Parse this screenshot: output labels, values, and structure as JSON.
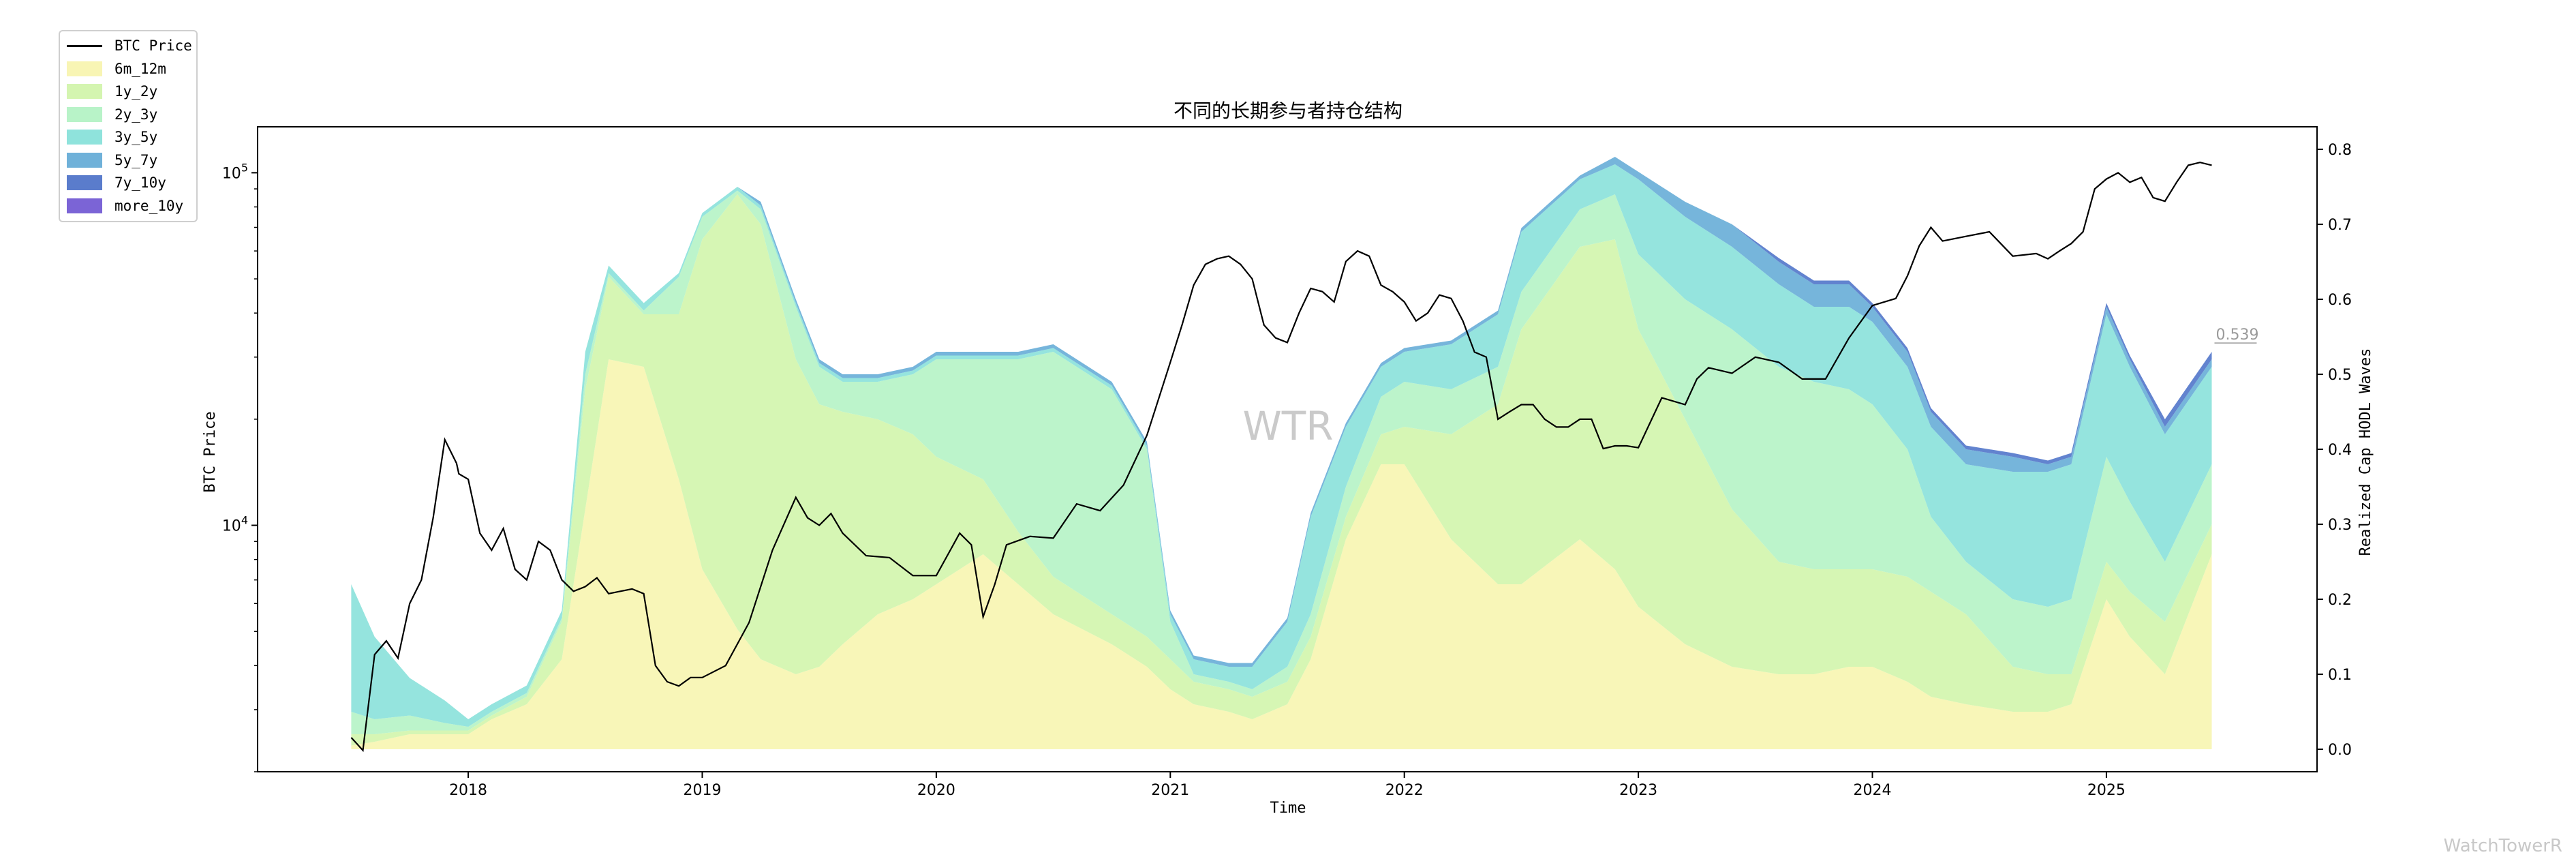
{
  "chart_data": {
    "type": "area",
    "title": "不同的长期参与者持仓结构",
    "xlabel": "Time",
    "ylabel_left": "BTC Price",
    "ylabel_right": "Realized Cap HODL Waves",
    "x_ticks": [
      "2018",
      "2019",
      "2020",
      "2021",
      "2022",
      "2023",
      "2024",
      "2025"
    ],
    "y_left_scale": "log",
    "y_left_ticks": [
      "10^4",
      "10^5"
    ],
    "y_left_range": [
      2000,
      135000
    ],
    "y_right_range": [
      -0.03,
      0.83
    ],
    "y_right_ticks": [
      "0.0",
      "0.1",
      "0.2",
      "0.3",
      "0.4",
      "0.5",
      "0.6",
      "0.7",
      "0.8"
    ],
    "x_range": [
      2017.1,
      2025.9
    ],
    "grid": false,
    "legend_position": "upper-left outside",
    "watermark": "WTR",
    "annotation": {
      "label": "0.539",
      "x": 2025.45,
      "y": 0.539
    },
    "x": [
      2017.5,
      2017.6,
      2017.75,
      2017.9,
      2018.0,
      2018.1,
      2018.25,
      2018.4,
      2018.5,
      2018.6,
      2018.75,
      2018.9,
      2019.0,
      2019.15,
      2019.25,
      2019.4,
      2019.5,
      2019.6,
      2019.75,
      2019.9,
      2020.0,
      2020.2,
      2020.35,
      2020.5,
      2020.75,
      2020.9,
      2021.0,
      2021.1,
      2021.25,
      2021.35,
      2021.5,
      2021.6,
      2021.75,
      2021.9,
      2022.0,
      2022.2,
      2022.4,
      2022.5,
      2022.75,
      2022.9,
      2023.0,
      2023.2,
      2023.4,
      2023.6,
      2023.75,
      2023.9,
      2024.0,
      2024.15,
      2024.25,
      2024.4,
      2024.6,
      2024.75,
      2024.85,
      2025.0,
      2025.1,
      2025.25,
      2025.45
    ],
    "series": [
      {
        "name": "6m_12m",
        "color": "#f8f5b4",
        "values": [
          0.005,
          0.01,
          0.02,
          0.02,
          0.02,
          0.04,
          0.06,
          0.12,
          0.32,
          0.52,
          0.51,
          0.36,
          0.24,
          0.16,
          0.12,
          0.1,
          0.11,
          0.14,
          0.18,
          0.2,
          0.22,
          0.26,
          0.22,
          0.18,
          0.14,
          0.11,
          0.08,
          0.06,
          0.05,
          0.04,
          0.06,
          0.12,
          0.28,
          0.38,
          0.38,
          0.28,
          0.22,
          0.22,
          0.28,
          0.24,
          0.19,
          0.14,
          0.11,
          0.1,
          0.1,
          0.11,
          0.11,
          0.09,
          0.07,
          0.06,
          0.05,
          0.05,
          0.06,
          0.2,
          0.15,
          0.1,
          0.26
        ]
      },
      {
        "name": "1y_2y",
        "color": "#d4f5b0",
        "values": [
          0.015,
          0.01,
          0.005,
          0.005,
          0.005,
          0.005,
          0.01,
          0.05,
          0.16,
          0.11,
          0.07,
          0.22,
          0.44,
          0.58,
          0.58,
          0.42,
          0.35,
          0.31,
          0.26,
          0.22,
          0.17,
          0.1,
          0.07,
          0.05,
          0.04,
          0.04,
          0.04,
          0.03,
          0.03,
          0.03,
          0.03,
          0.03,
          0.03,
          0.04,
          0.05,
          0.14,
          0.24,
          0.34,
          0.39,
          0.44,
          0.37,
          0.3,
          0.21,
          0.15,
          0.14,
          0.13,
          0.13,
          0.14,
          0.14,
          0.12,
          0.06,
          0.05,
          0.04,
          0.05,
          0.06,
          0.07,
          0.04
        ]
      },
      {
        "name": "2y_3y",
        "color": "#b8f3c8",
        "values": [
          0.03,
          0.02,
          0.02,
          0.01,
          0.005,
          0.005,
          0.005,
          0.005,
          0.02,
          0.005,
          0.005,
          0.05,
          0.03,
          0.005,
          0.02,
          0.07,
          0.05,
          0.04,
          0.05,
          0.08,
          0.13,
          0.16,
          0.23,
          0.3,
          0.3,
          0.25,
          0.05,
          0.01,
          0.01,
          0.01,
          0.02,
          0.03,
          0.04,
          0.05,
          0.06,
          0.06,
          0.05,
          0.05,
          0.05,
          0.06,
          0.1,
          0.16,
          0.24,
          0.26,
          0.25,
          0.24,
          0.22,
          0.17,
          0.1,
          0.07,
          0.09,
          0.09,
          0.1,
          0.14,
          0.12,
          0.08,
          0.08
        ]
      },
      {
        "name": "3y_5y",
        "color": "#8fe3dc",
        "values": [
          0.17,
          0.11,
          0.05,
          0.03,
          0.01,
          0.01,
          0.01,
          0.01,
          0.03,
          0.01,
          0.01,
          0.005,
          0.005,
          0.005,
          0.005,
          0.005,
          0.005,
          0.005,
          0.005,
          0.005,
          0.005,
          0.005,
          0.005,
          0.005,
          0.005,
          0.005,
          0.01,
          0.02,
          0.02,
          0.03,
          0.06,
          0.13,
          0.08,
          0.04,
          0.04,
          0.06,
          0.07,
          0.08,
          0.04,
          0.04,
          0.1,
          0.11,
          0.11,
          0.11,
          0.1,
          0.11,
          0.11,
          0.11,
          0.12,
          0.13,
          0.17,
          0.18,
          0.18,
          0.19,
          0.18,
          0.17,
          0.13
        ]
      },
      {
        "name": "5y_7y",
        "color": "#6fb1d9",
        "values": [
          0.0,
          0.0,
          0.0,
          0.0,
          0.0,
          0.0,
          0.0,
          0.0,
          0.0,
          0.0,
          0.0,
          0.0,
          0.0,
          0.0,
          0.005,
          0.005,
          0.005,
          0.005,
          0.005,
          0.005,
          0.005,
          0.005,
          0.005,
          0.005,
          0.005,
          0.005,
          0.005,
          0.005,
          0.005,
          0.005,
          0.005,
          0.005,
          0.005,
          0.005,
          0.005,
          0.005,
          0.005,
          0.005,
          0.005,
          0.01,
          0.01,
          0.02,
          0.03,
          0.03,
          0.03,
          0.03,
          0.02,
          0.02,
          0.02,
          0.02,
          0.02,
          0.01,
          0.01,
          0.01,
          0.01,
          0.01,
          0.01
        ]
      },
      {
        "name": "7y_10y",
        "color": "#5a7ccc",
        "values": [
          0.0,
          0.0,
          0.0,
          0.0,
          0.0,
          0.0,
          0.0,
          0.0,
          0.0,
          0.0,
          0.0,
          0.0,
          0.0,
          0.0,
          0.0,
          0.0,
          0.0,
          0.0,
          0.0,
          0.0,
          0.0,
          0.0,
          0.0,
          0.0,
          0.0,
          0.0,
          0.0,
          0.0,
          0.0,
          0.0,
          0.0,
          0.0,
          0.0,
          0.0,
          0.0,
          0.0,
          0.0,
          0.0,
          0.0,
          0.0,
          0.0,
          0.0,
          0.0,
          0.005,
          0.005,
          0.005,
          0.005,
          0.005,
          0.005,
          0.005,
          0.005,
          0.005,
          0.005,
          0.005,
          0.005,
          0.01,
          0.01
        ]
      },
      {
        "name": "more_10y",
        "color": "#7b64d6",
        "values": [
          0.0,
          0.0,
          0.0,
          0.0,
          0.0,
          0.0,
          0.0,
          0.0,
          0.0,
          0.0,
          0.0,
          0.0,
          0.0,
          0.0,
          0.0,
          0.0,
          0.0,
          0.0,
          0.0,
          0.0,
          0.0,
          0.0,
          0.0,
          0.0,
          0.0,
          0.0,
          0.0,
          0.0,
          0.0,
          0.0,
          0.0,
          0.0,
          0.0,
          0.0,
          0.0,
          0.0,
          0.0,
          0.0,
          0.0,
          0.0,
          0.0,
          0.0,
          0.0,
          0.0,
          0.0,
          0.0,
          0.0,
          0.0,
          0.0,
          0.0,
          0.0,
          0.0,
          0.0,
          0.0,
          0.0,
          0.0,
          0.0
        ]
      }
    ],
    "price_series": {
      "name": "BTC Price",
      "color": "#000000",
      "x": [
        2017.5,
        2017.55,
        2017.6,
        2017.65,
        2017.7,
        2017.75,
        2017.8,
        2017.85,
        2017.9,
        2017.95,
        2017.96,
        2018.0,
        2018.05,
        2018.1,
        2018.15,
        2018.2,
        2018.25,
        2018.3,
        2018.35,
        2018.4,
        2018.45,
        2018.5,
        2018.55,
        2018.6,
        2018.65,
        2018.7,
        2018.75,
        2018.8,
        2018.85,
        2018.9,
        2018.95,
        2019.0,
        2019.1,
        2019.2,
        2019.3,
        2019.4,
        2019.45,
        2019.5,
        2019.55,
        2019.6,
        2019.7,
        2019.8,
        2019.9,
        2020.0,
        2020.1,
        2020.15,
        2020.2,
        2020.25,
        2020.3,
        2020.4,
        2020.5,
        2020.6,
        2020.7,
        2020.8,
        2020.9,
        2021.0,
        2021.05,
        2021.1,
        2021.15,
        2021.2,
        2021.25,
        2021.3,
        2021.35,
        2021.4,
        2021.45,
        2021.5,
        2021.55,
        2021.6,
        2021.65,
        2021.7,
        2021.75,
        2021.8,
        2021.85,
        2021.9,
        2021.95,
        2022.0,
        2022.05,
        2022.1,
        2022.15,
        2022.2,
        2022.25,
        2022.3,
        2022.35,
        2022.4,
        2022.45,
        2022.5,
        2022.55,
        2022.6,
        2022.65,
        2022.7,
        2022.75,
        2022.8,
        2022.85,
        2022.9,
        2022.95,
        2023.0,
        2023.1,
        2023.2,
        2023.25,
        2023.3,
        2023.4,
        2023.5,
        2023.6,
        2023.7,
        2023.8,
        2023.9,
        2024.0,
        2024.1,
        2024.15,
        2024.2,
        2024.25,
        2024.3,
        2024.4,
        2024.5,
        2024.6,
        2024.7,
        2024.75,
        2024.8,
        2024.85,
        2024.9,
        2024.95,
        2025.0,
        2025.05,
        2025.1,
        2025.15,
        2025.2,
        2025.25,
        2025.3,
        2025.35,
        2025.4,
        2025.45
      ],
      "values": [
        2500,
        2300,
        4300,
        4700,
        4200,
        6000,
        7000,
        10500,
        17500,
        15000,
        14000,
        13500,
        9500,
        8500,
        9800,
        7500,
        7000,
        9000,
        8500,
        7000,
        6500,
        6700,
        7100,
        6400,
        6500,
        6600,
        6400,
        4000,
        3600,
        3500,
        3700,
        3700,
        4000,
        5300,
        8500,
        12000,
        10500,
        10000,
        10800,
        9500,
        8200,
        8100,
        7200,
        7200,
        9500,
        8800,
        5500,
        6800,
        8800,
        9300,
        9200,
        11500,
        11000,
        13000,
        18000,
        29000,
        37000,
        48000,
        55000,
        57000,
        58000,
        55000,
        50000,
        37000,
        34000,
        33000,
        40000,
        47000,
        46000,
        43000,
        56000,
        60000,
        58000,
        48000,
        46000,
        43000,
        38000,
        40000,
        45000,
        44000,
        38000,
        31000,
        30000,
        20000,
        21000,
        22000,
        22000,
        20000,
        19000,
        19000,
        20000,
        20000,
        16500,
        16800,
        16800,
        16600,
        23000,
        22000,
        26000,
        28000,
        27000,
        30000,
        29000,
        26000,
        26000,
        34000,
        42000,
        44000,
        51000,
        62000,
        70000,
        64000,
        66000,
        68000,
        58000,
        59000,
        57000,
        60000,
        63000,
        68000,
        90000,
        96000,
        100000,
        94000,
        97000,
        85000,
        83000,
        94000,
        105000,
        107000,
        105000
      ]
    }
  },
  "legend": {
    "items": [
      {
        "label": "BTC Price",
        "kind": "line",
        "color": "#000000"
      },
      {
        "label": "6m_12m",
        "kind": "swatch",
        "color": "#f8f5b4"
      },
      {
        "label": "1y_2y",
        "kind": "swatch",
        "color": "#d4f5b0"
      },
      {
        "label": "2y_3y",
        "kind": "swatch",
        "color": "#b8f3c8"
      },
      {
        "label": "3y_5y",
        "kind": "swatch",
        "color": "#8fe3dc"
      },
      {
        "label": "5y_7y",
        "kind": "swatch",
        "color": "#6fb1d9"
      },
      {
        "label": "7y_10y",
        "kind": "swatch",
        "color": "#5a7ccc"
      },
      {
        "label": "more_10y",
        "kind": "swatch",
        "color": "#7b64d6"
      }
    ]
  },
  "footer": {
    "watermark_logo": "WatchTowerR"
  }
}
